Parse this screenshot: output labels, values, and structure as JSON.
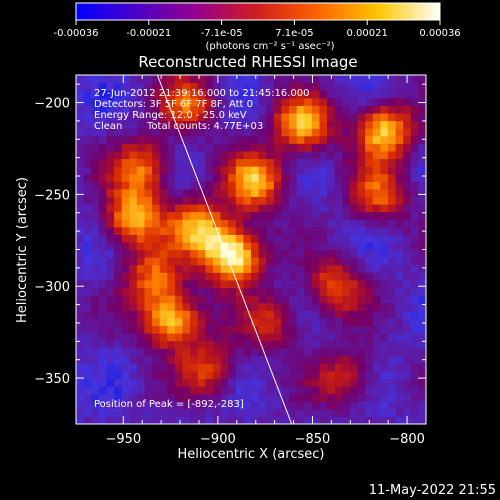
{
  "colorbar": {
    "tick_labels": [
      "-0.00036",
      "-0.00021",
      "-7.1e-05",
      "7.1e-05",
      "0.00021",
      "0.00036"
    ],
    "unit_label": "(photons cm⁻² s⁻¹ asec⁻²)",
    "range": [
      -0.00036,
      0.00036
    ],
    "colors": [
      "#0000ff",
      "#4b00c8",
      "#96008c",
      "#d21e1e",
      "#ff6400",
      "#ffc800",
      "#ffffff"
    ]
  },
  "chart_data": {
    "type": "heatmap",
    "title": "Reconstructed RHESSI Image",
    "xlabel": "Heliocentric X (arcsec)",
    "ylabel": "Heliocentric Y (arcsec)",
    "xlim": [
      -975,
      -790
    ],
    "ylim": [
      -375,
      -185
    ],
    "x_ticks": [
      -950,
      -900,
      -850,
      -800
    ],
    "y_ticks": [
      -350,
      -300,
      -250,
      -200
    ],
    "x_tick_labels": [
      "−950",
      "−900",
      "−850",
      "−800"
    ],
    "y_tick_labels": [
      "−350",
      "−300",
      "−250",
      "−200"
    ],
    "limb_line": [
      [
        -932,
        -185
      ],
      [
        -861,
        -375
      ]
    ],
    "sources": [
      {
        "x": -892,
        "y": -283,
        "peak": 1.0
      },
      {
        "x": -910,
        "y": -268,
        "peak": 0.7
      },
      {
        "x": -880,
        "y": -243,
        "peak": 0.75
      },
      {
        "x": -925,
        "y": -318,
        "peak": 0.85
      },
      {
        "x": -945,
        "y": -262,
        "peak": 0.75
      },
      {
        "x": -940,
        "y": -235,
        "peak": 0.6
      },
      {
        "x": -935,
        "y": -295,
        "peak": 0.55
      },
      {
        "x": -915,
        "y": -200,
        "peak": 0.55
      },
      {
        "x": -855,
        "y": -212,
        "peak": 0.75
      },
      {
        "x": -812,
        "y": -215,
        "peak": 0.8
      },
      {
        "x": -815,
        "y": -250,
        "peak": 0.55
      },
      {
        "x": -838,
        "y": -300,
        "peak": 0.55
      },
      {
        "x": -905,
        "y": -345,
        "peak": 0.5
      },
      {
        "x": -833,
        "y": -350,
        "peak": 0.45
      },
      {
        "x": -872,
        "y": -320,
        "peak": 0.45
      }
    ],
    "annotations": {
      "time_range": "27-Jun-2012 21:39:16.000 to 21:45:16.000",
      "detectors": "Detectors: 3F 5F 6F 7F 8F, Att 0",
      "energy": "Energy Range: 12.0 - 25.0 keV",
      "clean": "Clean",
      "counts": "Total counts: 4.77E+03",
      "peak": "Position of Peak = [-892,-283]"
    }
  },
  "footer": {
    "date": "11-May-2022 21:55"
  }
}
